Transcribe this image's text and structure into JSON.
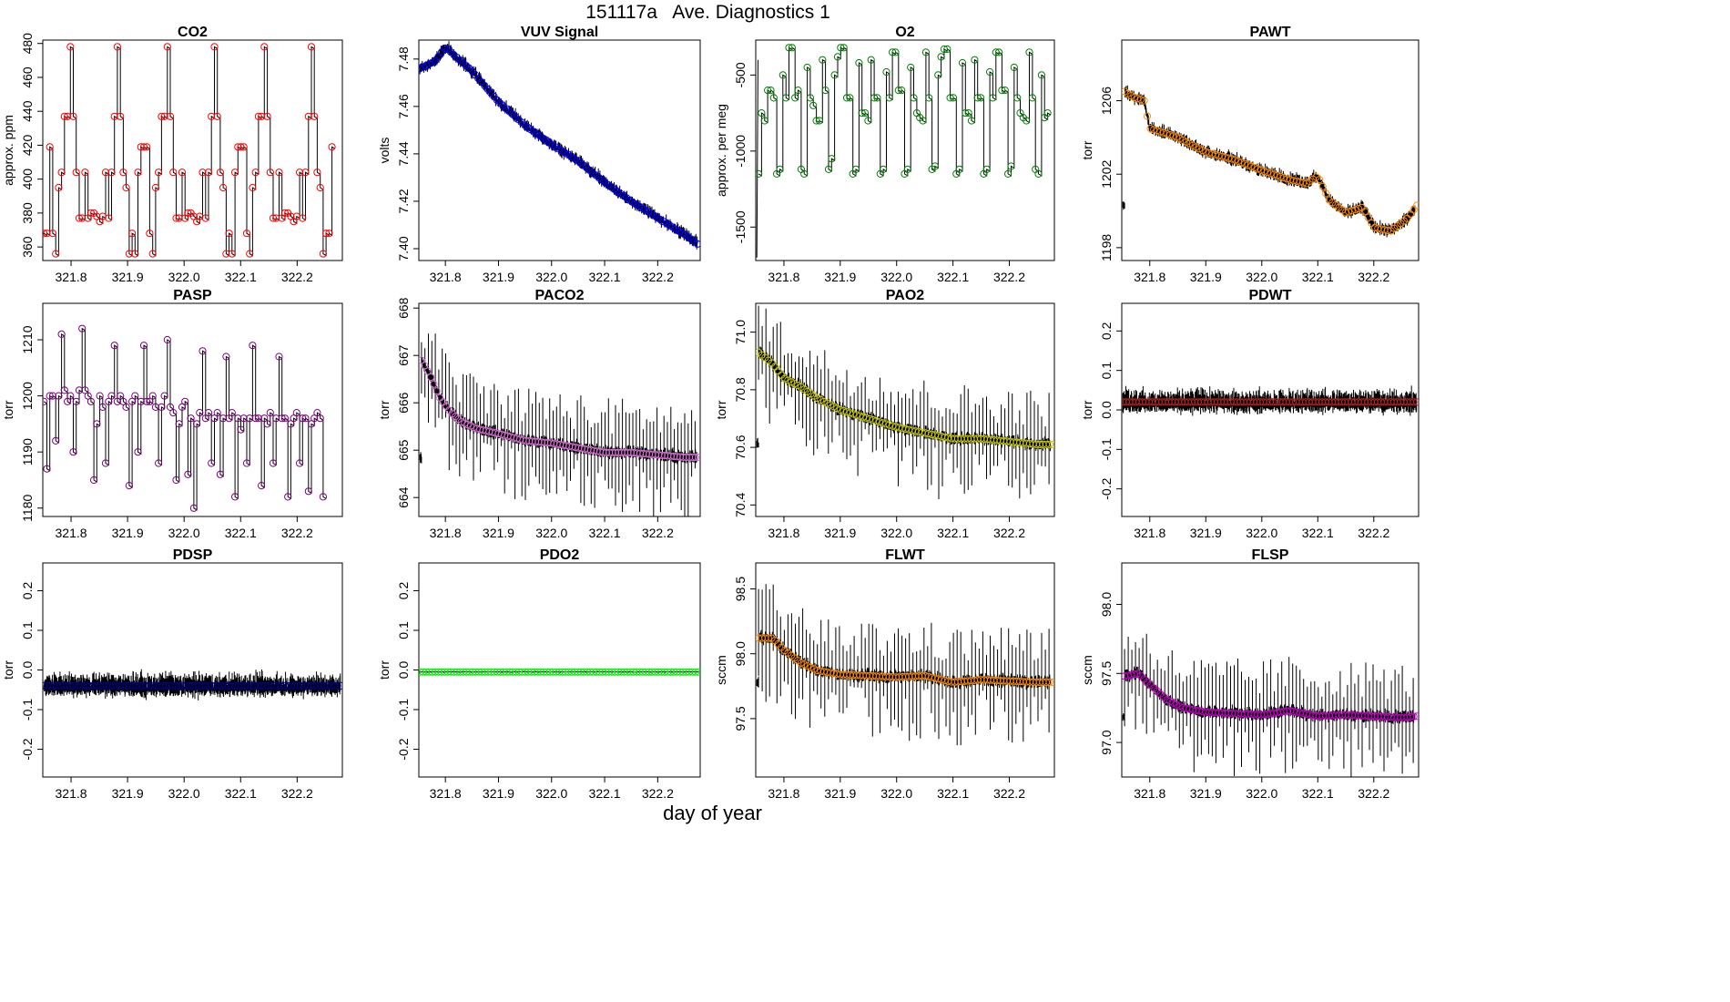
{
  "figure": {
    "title": "151117a   Ave. Diagnostics 1",
    "xlabel": "day of year"
  },
  "chart_data": [
    {
      "type": "line",
      "title": "CO2",
      "ylabel": "approx. ppm",
      "color": "#ff0000",
      "xlim": [
        321.75,
        322.28
      ],
      "ylim": [
        352,
        482
      ],
      "yticks": [
        360,
        380,
        400,
        420,
        440,
        460,
        480
      ],
      "xticks": [
        321.8,
        321.9,
        322.0,
        322.1,
        322.2
      ],
      "xtick_labels": [
        "321.8",
        "321.9",
        "322.0",
        "322.1",
        "322.2"
      ],
      "x_start": 321.752,
      "x_step": 0.0052,
      "values": [
        368,
        368,
        419,
        368,
        356,
        395,
        404,
        437,
        437,
        478,
        437,
        404,
        377,
        377,
        404,
        377,
        380,
        380,
        378,
        375,
        378,
        404,
        377,
        404,
        437,
        478,
        437,
        404,
        395,
        356,
        368,
        356,
        404,
        419,
        419,
        419,
        368,
        356,
        395,
        404,
        437,
        437,
        478,
        437,
        404,
        377,
        377,
        404,
        377,
        380,
        380,
        378,
        375,
        378,
        404,
        377,
        404,
        437,
        478,
        437,
        404,
        395,
        356,
        368,
        356,
        404,
        419,
        419,
        419,
        368,
        356,
        395,
        404,
        437,
        437,
        478,
        437,
        404,
        377,
        377,
        404,
        377,
        380,
        380,
        378,
        375,
        378,
        404,
        377,
        404,
        437,
        478,
        437,
        404,
        395,
        356,
        368,
        368,
        419
      ]
    },
    {
      "type": "line",
      "title": "VUV Signal",
      "ylabel": "volts",
      "color": "#0000ff",
      "xlim": [
        321.75,
        322.28
      ],
      "ylim": [
        7.395,
        7.488
      ],
      "yticks": [
        7.4,
        7.42,
        7.44,
        7.46,
        7.48
      ],
      "ytick_labels": [
        "7.40",
        "7.42",
        "7.44",
        "7.46",
        "7.48"
      ],
      "xticks": [
        321.8,
        321.9,
        322.0,
        322.1,
        322.2
      ],
      "xtick_labels": [
        "321.8",
        "321.9",
        "322.0",
        "322.1",
        "322.2"
      ],
      "x": [
        321.752,
        321.78,
        321.8,
        321.85,
        321.9,
        321.95,
        322.0,
        322.05,
        322.1,
        322.15,
        322.2,
        322.25,
        322.275
      ],
      "values": [
        7.476,
        7.479,
        7.485,
        7.475,
        7.462,
        7.452,
        7.444,
        7.437,
        7.428,
        7.42,
        7.413,
        7.406,
        7.402
      ]
    },
    {
      "type": "line",
      "title": "O2",
      "ylabel": "approx. per meg",
      "color": "#008000",
      "xlim": [
        321.75,
        322.28
      ],
      "ylim": [
        -1720,
        -270
      ],
      "yticks": [
        -1500,
        -1000,
        -500
      ],
      "xticks": [
        321.8,
        321.9,
        322.0,
        322.1,
        322.2
      ],
      "xtick_labels": [
        "321.8",
        "321.9",
        "322.0",
        "322.1",
        "322.2"
      ],
      "x_start": 321.755,
      "x_step": 0.0054,
      "values": [
        -1150,
        -750,
        -800,
        -600,
        -600,
        -650,
        -1150,
        -1120,
        -500,
        -650,
        -320,
        -320,
        -650,
        -600,
        -1120,
        -1150,
        -450,
        -650,
        -700,
        -800,
        -800,
        -400,
        -600,
        -1120,
        -1050,
        -500,
        -380,
        -320,
        -320,
        -650,
        -650,
        -1150,
        -1120,
        -420,
        -750,
        -750,
        -800,
        -400,
        -650,
        -650,
        -1150,
        -1120,
        -480,
        -650,
        -350,
        -350,
        -600,
        -600,
        -1150,
        -1120,
        -450,
        -650,
        -750,
        -780,
        -800,
        -350,
        -650,
        -1120,
        -1100,
        -500,
        -380,
        -330,
        -330,
        -650,
        -650,
        -1150,
        -1120,
        -420,
        -750,
        -750,
        -800,
        -400,
        -650,
        -650,
        -1150,
        -1120,
        -480,
        -650,
        -350,
        -350,
        -600,
        -600,
        -1150,
        -1100,
        -450,
        -650,
        -750,
        -780,
        -800,
        -350,
        -650,
        -1120,
        -1150,
        -500,
        -780,
        -750
      ],
      "extra_spike": {
        "x": 321.752,
        "y": -1700
      }
    },
    {
      "type": "line",
      "title": "PAWT",
      "ylabel": "torr",
      "color": "#ff8c00",
      "xlim": [
        321.75,
        322.28
      ],
      "ylim": [
        1197.3,
        1209.3
      ],
      "yticks": [
        1198,
        1202,
        1206
      ],
      "xticks": [
        321.8,
        321.9,
        322.0,
        322.1,
        322.2
      ],
      "xtick_labels": [
        "321.8",
        "321.9",
        "322.0",
        "322.1",
        "322.2"
      ],
      "x": [
        321.755,
        321.77,
        321.79,
        321.8,
        321.85,
        321.9,
        321.95,
        322.0,
        322.05,
        322.08,
        322.1,
        322.12,
        322.15,
        322.18,
        322.2,
        322.23,
        322.26,
        322.277
      ],
      "values": [
        1206.5,
        1206.2,
        1206.0,
        1204.5,
        1204.0,
        1203.2,
        1202.8,
        1202.2,
        1201.7,
        1201.5,
        1201.9,
        1200.6,
        1199.9,
        1200.2,
        1199.1,
        1198.9,
        1199.6,
        1200.3
      ]
    },
    {
      "type": "line",
      "title": "PASP",
      "ylabel": "torr",
      "color": "#800080",
      "xlim": [
        321.75,
        322.28
      ],
      "ylim": [
        1178.5,
        1216.5
      ],
      "yticks": [
        1180,
        1190,
        1200,
        1210
      ],
      "xticks": [
        321.8,
        321.9,
        322.0,
        322.1,
        322.2
      ],
      "xtick_labels": [
        "321.8",
        "321.9",
        "322.0",
        "322.1",
        "322.2"
      ],
      "x_start": 321.752,
      "x_step": 0.0052,
      "values": [
        1199,
        1187,
        1200,
        1200,
        1192,
        1200,
        1211,
        1201,
        1199,
        1200,
        1190,
        1199,
        1201,
        1212,
        1201,
        1200,
        1199,
        1185,
        1195,
        1200,
        1198,
        1188,
        1199,
        1200,
        1209,
        1199,
        1200,
        1199,
        1198,
        1184,
        1199,
        1200,
        1190,
        1199,
        1209,
        1199,
        1199,
        1200,
        1198,
        1188,
        1198,
        1200,
        1210,
        1198,
        1197,
        1185,
        1195,
        1198,
        1199,
        1186,
        1196,
        1180,
        1195,
        1197,
        1208,
        1196,
        1197,
        1188,
        1196,
        1197,
        1186,
        1196,
        1207,
        1196,
        1197,
        1182,
        1196,
        1194,
        1196,
        1188,
        1196,
        1209,
        1196,
        1196,
        1184,
        1196,
        1195,
        1197,
        1188,
        1196,
        1207,
        1196,
        1196,
        1182,
        1195,
        1196,
        1197,
        1188,
        1196,
        1196,
        1183,
        1195,
        1196,
        1197,
        1196,
        1182
      ]
    },
    {
      "type": "line",
      "title": "PACO2",
      "ylabel": "torr",
      "color": "#da70d6",
      "xlim": [
        321.75,
        322.28
      ],
      "ylim": [
        663.6,
        668.1
      ],
      "yticks": [
        664,
        665,
        666,
        667,
        668
      ],
      "xticks": [
        321.8,
        321.9,
        322.0,
        322.1,
        322.2
      ],
      "xtick_labels": [
        "321.8",
        "321.9",
        "322.0",
        "322.1",
        "322.2"
      ],
      "x": [
        321.755,
        321.77,
        321.79,
        321.81,
        321.83,
        321.86,
        321.9,
        321.95,
        322.0,
        322.05,
        322.1,
        322.15,
        322.2,
        322.25,
        322.277
      ],
      "values": [
        666.9,
        666.6,
        666.1,
        665.8,
        665.6,
        665.45,
        665.35,
        665.2,
        665.15,
        665.05,
        664.95,
        664.95,
        664.9,
        664.85,
        664.85
      ]
    },
    {
      "type": "line",
      "title": "PAO2",
      "ylabel": "torr",
      "color": "#cccc00",
      "xlim": [
        321.75,
        322.28
      ],
      "ylim": [
        70.36,
        71.1
      ],
      "yticks": [
        70.4,
        70.6,
        70.8,
        71.0
      ],
      "ytick_labels": [
        "70.4",
        "70.6",
        "70.8",
        "71.0"
      ],
      "xticks": [
        321.8,
        321.9,
        322.0,
        322.1,
        322.2
      ],
      "xtick_labels": [
        "321.8",
        "321.9",
        "322.0",
        "322.1",
        "322.2"
      ],
      "x": [
        321.755,
        321.78,
        321.8,
        321.83,
        321.86,
        321.9,
        321.95,
        322.0,
        322.05,
        322.1,
        322.15,
        322.2,
        322.25,
        322.277
      ],
      "values": [
        70.93,
        70.89,
        70.84,
        70.81,
        70.77,
        70.73,
        70.7,
        70.67,
        70.65,
        70.63,
        70.63,
        70.62,
        70.61,
        70.61
      ]
    },
    {
      "type": "line",
      "title": "PDWT",
      "ylabel": "torr",
      "color": "#b22222",
      "xlim": [
        321.75,
        322.28
      ],
      "ylim": [
        -0.27,
        0.27
      ],
      "yticks": [
        -0.2,
        -0.1,
        0.0,
        0.1,
        0.2
      ],
      "ytick_labels": [
        "-0.2",
        "-0.1",
        "0.0",
        "0.1",
        "0.2"
      ],
      "xticks": [
        321.8,
        321.9,
        322.0,
        322.1,
        322.2
      ],
      "xtick_labels": [
        "321.8",
        "321.9",
        "322.0",
        "322.1",
        "322.2"
      ],
      "x": [
        321.752,
        322.277
      ],
      "values": [
        0.02,
        0.02
      ],
      "band": 0.03
    },
    {
      "type": "line",
      "title": "PDSP",
      "ylabel": "torr",
      "color": "#00008b",
      "xlim": [
        321.75,
        322.28
      ],
      "ylim": [
        -0.27,
        0.27
      ],
      "yticks": [
        -0.2,
        -0.1,
        0.0,
        0.1,
        0.2
      ],
      "ytick_labels": [
        "-0.2",
        "-0.1",
        "0.0",
        "0.1",
        "0.2"
      ],
      "xticks": [
        321.8,
        321.9,
        322.0,
        322.1,
        322.2
      ],
      "xtick_labels": [
        "321.8",
        "321.9",
        "322.0",
        "322.1",
        "322.2"
      ],
      "x": [
        321.752,
        322.277
      ],
      "values": [
        -0.04,
        -0.04
      ],
      "band": 0.03
    },
    {
      "type": "line",
      "title": "PDO2",
      "ylabel": "torr",
      "color": "#00ee00",
      "xlim": [
        321.75,
        322.28
      ],
      "ylim": [
        -0.27,
        0.27
      ],
      "yticks": [
        -0.2,
        -0.1,
        0.0,
        0.1,
        0.2
      ],
      "ytick_labels": [
        "-0.2",
        "-0.1",
        "0.0",
        "0.1",
        "0.2"
      ],
      "xticks": [
        321.8,
        321.9,
        322.0,
        322.1,
        322.2
      ],
      "xtick_labels": [
        "321.8",
        "321.9",
        "322.0",
        "322.1",
        "322.2"
      ],
      "x": [
        321.752,
        322.277
      ],
      "values": [
        -0.005,
        -0.005
      ],
      "band": 0.002
    },
    {
      "type": "line",
      "title": "FLWT",
      "ylabel": "sccm",
      "color": "#ff8c00",
      "xlim": [
        321.75,
        322.28
      ],
      "ylim": [
        97.05,
        98.7
      ],
      "yticks": [
        97.5,
        98.0,
        98.5
      ],
      "ytick_labels": [
        "97.5",
        "98.0",
        "98.5"
      ],
      "xticks": [
        321.8,
        321.9,
        322.0,
        322.1,
        322.2
      ],
      "xtick_labels": [
        "321.8",
        "321.9",
        "322.0",
        "322.1",
        "322.2"
      ],
      "x": [
        321.755,
        321.78,
        321.8,
        321.83,
        321.86,
        321.9,
        321.95,
        322.0,
        322.05,
        322.1,
        322.15,
        322.2,
        322.25,
        322.277
      ],
      "values": [
        98.12,
        98.12,
        98.03,
        97.93,
        97.87,
        97.84,
        97.83,
        97.82,
        97.83,
        97.78,
        97.8,
        97.79,
        97.78,
        97.78
      ]
    },
    {
      "type": "line",
      "title": "FLSP",
      "ylabel": "sccm",
      "color": "#cc00cc",
      "xlim": [
        321.75,
        322.28
      ],
      "ylim": [
        96.75,
        98.3
      ],
      "yticks": [
        97.0,
        97.5,
        98.0
      ],
      "ytick_labels": [
        "97.0",
        "97.5",
        "98.0"
      ],
      "xticks": [
        321.8,
        321.9,
        322.0,
        322.1,
        322.2
      ],
      "xtick_labels": [
        "321.8",
        "321.9",
        "322.0",
        "322.1",
        "322.2"
      ],
      "x": [
        321.755,
        321.78,
        321.8,
        321.83,
        321.86,
        321.9,
        321.95,
        322.0,
        322.05,
        322.1,
        322.15,
        322.2,
        322.25,
        322.277
      ],
      "values": [
        97.48,
        97.5,
        97.42,
        97.31,
        97.25,
        97.22,
        97.21,
        97.2,
        97.23,
        97.19,
        97.2,
        97.19,
        97.18,
        97.19
      ]
    }
  ]
}
